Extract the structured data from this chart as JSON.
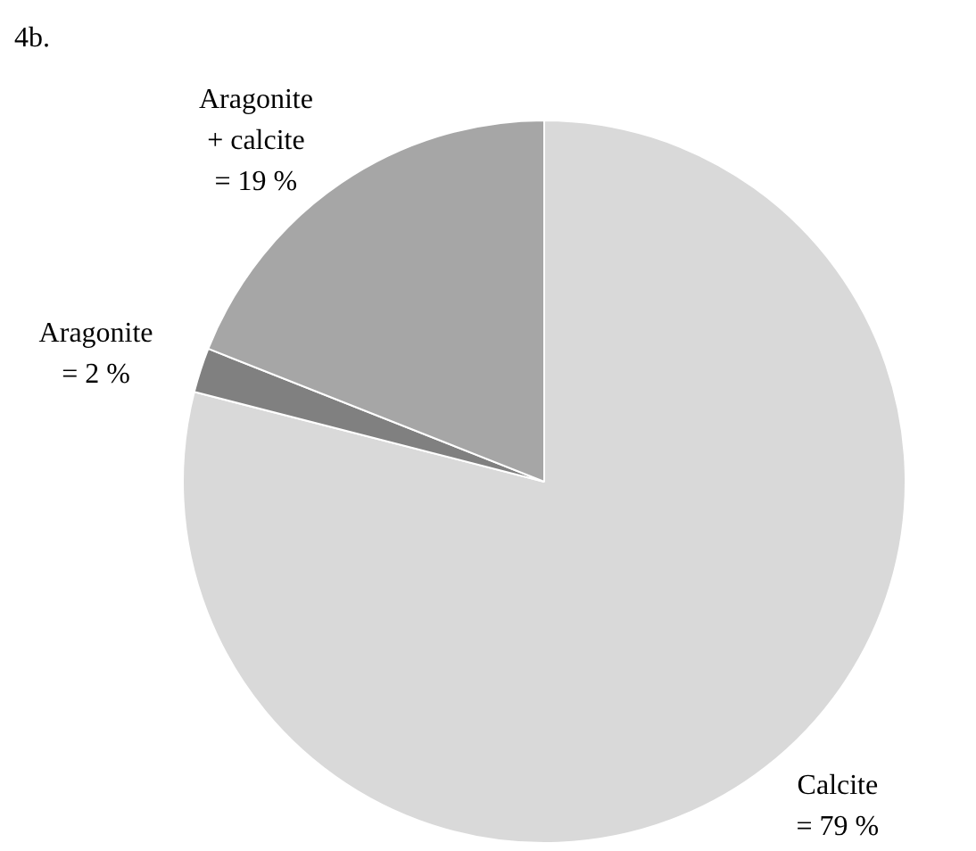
{
  "chart_data": {
    "type": "pie",
    "title": "4b.",
    "categories": [
      "Calcite",
      "Aragonite",
      "Aragonite + calcite"
    ],
    "values": [
      79,
      2,
      19
    ],
    "value_labels": [
      "= 79 %",
      "= 2 %",
      "= 19 %"
    ],
    "colors": [
      "#d9d9d9",
      "#808080",
      "#a6a6a6"
    ],
    "legend": false
  }
}
